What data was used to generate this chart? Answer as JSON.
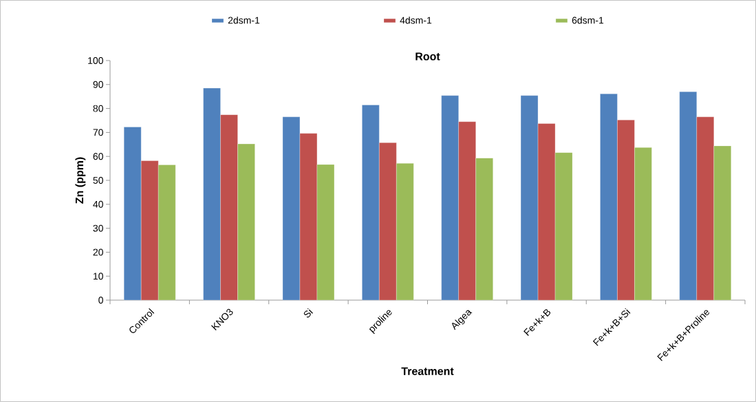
{
  "chart_data": {
    "type": "bar",
    "title": "Root",
    "xlabel": "Treatment",
    "ylabel": "Zn (ppm)",
    "categories": [
      "Control",
      "KNO3",
      "Si",
      "proline",
      "Algea",
      "Fe+k+B",
      "Fe+k+B+Si",
      "Fe+k+B+Proline"
    ],
    "series": [
      {
        "name": "2dsm-1",
        "color": "#4f81bd",
        "values": [
          72.3,
          88.5,
          76.5,
          81.5,
          85.4,
          85.4,
          86.1,
          87.0
        ]
      },
      {
        "name": "4dsm-1",
        "color": "#c0504d",
        "values": [
          58.2,
          77.4,
          69.6,
          65.7,
          74.5,
          73.7,
          75.2,
          76.5
        ]
      },
      {
        "name": "6dsm-1",
        "color": "#9bbb59",
        "values": [
          56.5,
          65.2,
          56.6,
          57.1,
          59.3,
          61.6,
          63.7,
          64.4
        ]
      }
    ],
    "ylim": [
      0,
      100
    ],
    "yticks": [
      0,
      10,
      20,
      30,
      40,
      50,
      60,
      70,
      80,
      90,
      100
    ],
    "grid": false,
    "legend": "top"
  }
}
